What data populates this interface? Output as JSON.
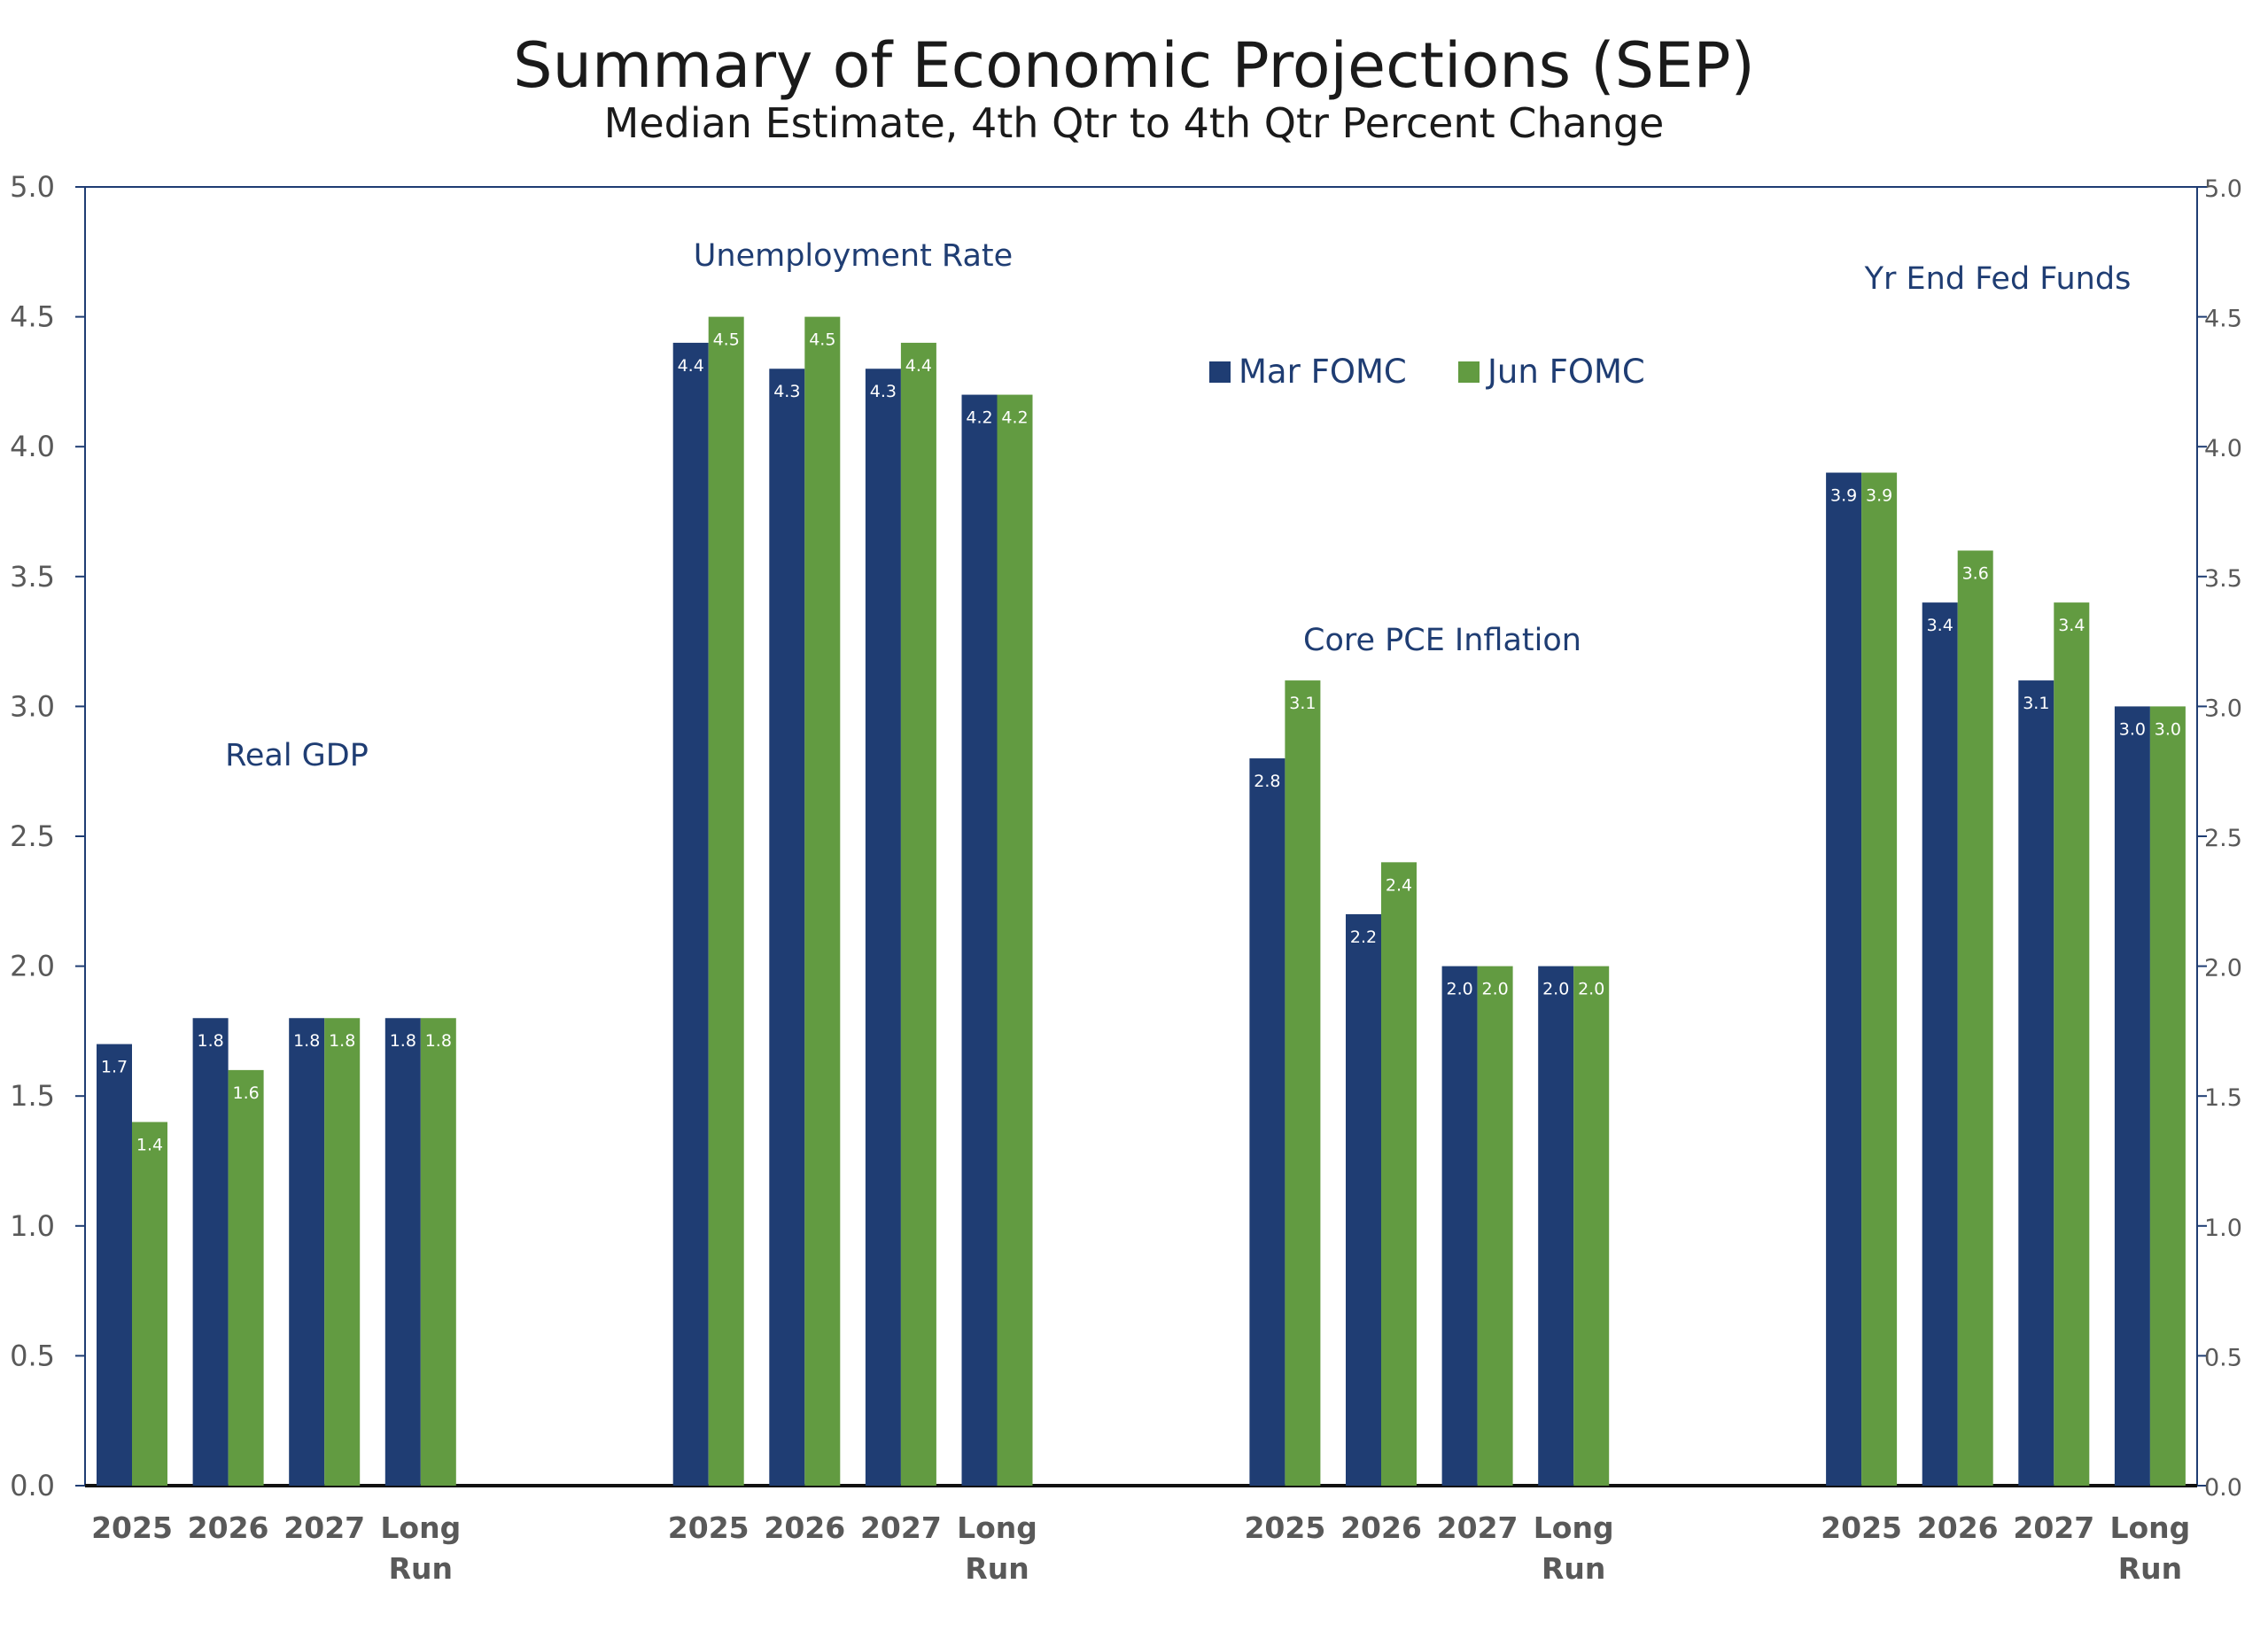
{
  "chart_data": {
    "type": "bar",
    "title": "Summary of Economic Projections (SEP)",
    "subtitle": "Median Estimate, 4th Qtr to 4th Qtr Percent Change",
    "xlabel": "",
    "ylabel": "",
    "ylim": [
      0,
      5
    ],
    "yticks": [
      "0.0",
      "0.5",
      "1.0",
      "1.5",
      "2.0",
      "2.5",
      "3.0",
      "3.5",
      "4.0",
      "4.5",
      "5.0"
    ],
    "grid": false,
    "legend_position": "top-center",
    "colors": {
      "Mar FOMC": "#1f3d73",
      "Jun FOMC": "#629b41"
    },
    "categories": [
      "2025",
      "2026",
      "2027",
      "Long Run"
    ],
    "category_lines": [
      [
        "2025"
      ],
      [
        "2026"
      ],
      [
        "2027"
      ],
      [
        "Long",
        "Run"
      ]
    ],
    "groups": [
      {
        "name": "Real GDP",
        "series": [
          {
            "name": "Mar FOMC",
            "values": [
              1.7,
              1.8,
              1.8,
              1.8
            ]
          },
          {
            "name": "Jun FOMC",
            "values": [
              1.4,
              1.6,
              1.8,
              1.8
            ]
          }
        ]
      },
      {
        "name": "Unemployment Rate",
        "series": [
          {
            "name": "Mar FOMC",
            "values": [
              4.4,
              4.3,
              4.3,
              4.2
            ]
          },
          {
            "name": "Jun FOMC",
            "values": [
              4.5,
              4.5,
              4.4,
              4.2
            ]
          }
        ]
      },
      {
        "name": "Core PCE Inflation",
        "series": [
          {
            "name": "Mar FOMC",
            "values": [
              2.8,
              2.2,
              2.0,
              2.0
            ]
          },
          {
            "name": "Jun FOMC",
            "values": [
              3.1,
              2.4,
              2.0,
              2.0
            ]
          }
        ]
      },
      {
        "name": "Yr End Fed Funds",
        "series": [
          {
            "name": "Mar FOMC",
            "values": [
              3.9,
              3.4,
              3.1,
              3.0
            ]
          },
          {
            "name": "Jun FOMC",
            "values": [
              3.9,
              3.6,
              3.4,
              3.0
            ]
          }
        ]
      }
    ],
    "legend": [
      "Mar FOMC",
      "Jun FOMC"
    ]
  }
}
